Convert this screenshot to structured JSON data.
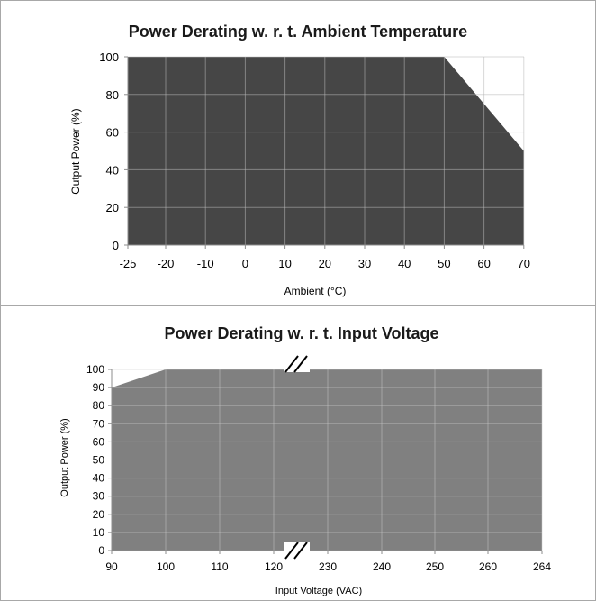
{
  "chart_data": [
    {
      "type": "area",
      "title": "Power Derating w. r. t. Ambient Temperature",
      "xlabel": "Ambient (°C)",
      "ylabel": "Output Power (%)",
      "x_ticks": [
        "-25",
        "-20",
        "-10",
        "0",
        "10",
        "20",
        "30",
        "40",
        "50",
        "60",
        "70"
      ],
      "y_ticks": [
        "0",
        "20",
        "40",
        "60",
        "80",
        "100"
      ],
      "ylim": [
        0,
        100
      ],
      "grid": true,
      "fill_color": "#464646",
      "series": [
        {
          "x": [
            -25,
            50,
            70
          ],
          "y": [
            100,
            100,
            50
          ]
        }
      ]
    },
    {
      "type": "area",
      "title": "Power Derating w. r. t. Input Voltage",
      "xlabel": "Input Voltage (VAC)",
      "ylabel": "Output Power (%)",
      "x_ticks": [
        "90",
        "100",
        "110",
        "120",
        "230",
        "240",
        "250",
        "260",
        "264"
      ],
      "y_ticks": [
        "0",
        "10",
        "20",
        "30",
        "40",
        "50",
        "60",
        "70",
        "80",
        "90",
        "100"
      ],
      "ylim": [
        0,
        100
      ],
      "axis_break": "between 120 and 230",
      "grid": true,
      "fill_color": "#808080",
      "series": [
        {
          "x": [
            90,
            100,
            264
          ],
          "y": [
            90,
            100,
            100
          ]
        }
      ]
    }
  ]
}
